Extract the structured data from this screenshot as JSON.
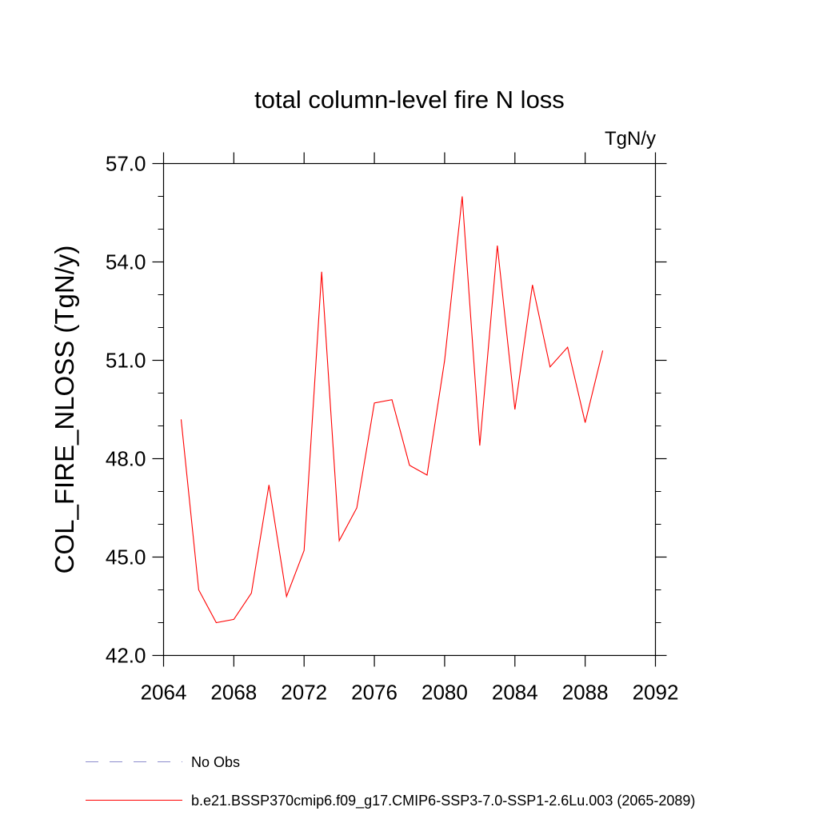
{
  "chart_data": {
    "type": "line",
    "title": "total column-level fire N loss",
    "units_label": "TgN/y",
    "ylabel": "COL_FIRE_NLOSS  (TgN/y)",
    "xlabel": "",
    "xlim": [
      2064,
      2092
    ],
    "ylim": [
      42.0,
      57.0
    ],
    "x_ticks": [
      "2064",
      "2068",
      "2072",
      "2076",
      "2080",
      "2084",
      "2088",
      "2092"
    ],
    "x_tick_values": [
      2064,
      2068,
      2072,
      2076,
      2080,
      2084,
      2088,
      2092
    ],
    "y_ticks": [
      "42.0",
      "45.0",
      "48.0",
      "51.0",
      "54.0",
      "57.0"
    ],
    "y_tick_values": [
      42.0,
      45.0,
      48.0,
      51.0,
      54.0,
      57.0
    ],
    "grid": false,
    "series": [
      {
        "name": "b.e21.BSSP370cmip6.f09_g17.CMIP6-SSP3-7.0-SSP1-2.6Lu.003 (2065-2089)",
        "color": "#ff0000",
        "style": "solid",
        "x": [
          2065,
          2066,
          2067,
          2068,
          2069,
          2070,
          2071,
          2072,
          2073,
          2074,
          2075,
          2076,
          2077,
          2078,
          2079,
          2080,
          2081,
          2082,
          2083,
          2084,
          2085,
          2086,
          2087,
          2088,
          2089
        ],
        "y": [
          49.2,
          44.0,
          43.0,
          43.1,
          43.9,
          47.2,
          43.8,
          45.2,
          53.7,
          45.5,
          46.5,
          49.7,
          49.8,
          47.8,
          47.5,
          51.0,
          56.0,
          48.4,
          54.5,
          49.5,
          53.3,
          50.8,
          51.4,
          49.1,
          51.3
        ]
      }
    ],
    "legend": [
      {
        "label": "No Obs",
        "color": "#8c8ccc",
        "style": "dashed"
      },
      {
        "label": "b.e21.BSSP370cmip6.f09_g17.CMIP6-SSP3-7.0-SSP1-2.6Lu.003 (2065-2089)",
        "color": "#ff0000",
        "style": "solid"
      }
    ],
    "legend_position": "bottom"
  }
}
